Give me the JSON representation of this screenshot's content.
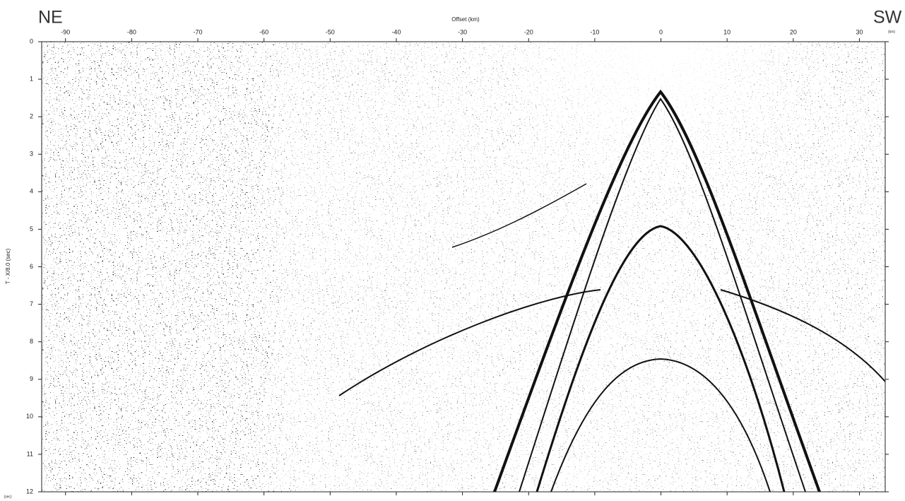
{
  "chart_data": {
    "type": "seismic-section",
    "direction_left": "NE",
    "direction_right": "SW",
    "x_label": "Offset (km)",
    "x_unit": "(km)",
    "y_label": "T - X/8.0 (sec)",
    "y_unit": "(sec)",
    "xlim": [
      -93.6,
      33.9
    ],
    "xticks": [
      -90,
      -80,
      -70,
      -60,
      -50,
      -40,
      -30,
      -20,
      -10,
      0,
      10,
      20,
      30
    ],
    "ylim": [
      0,
      12
    ],
    "yticks": [
      0,
      1,
      2,
      3,
      4,
      5,
      6,
      7,
      8,
      9,
      10,
      11,
      12
    ],
    "y_inverted": true
  }
}
